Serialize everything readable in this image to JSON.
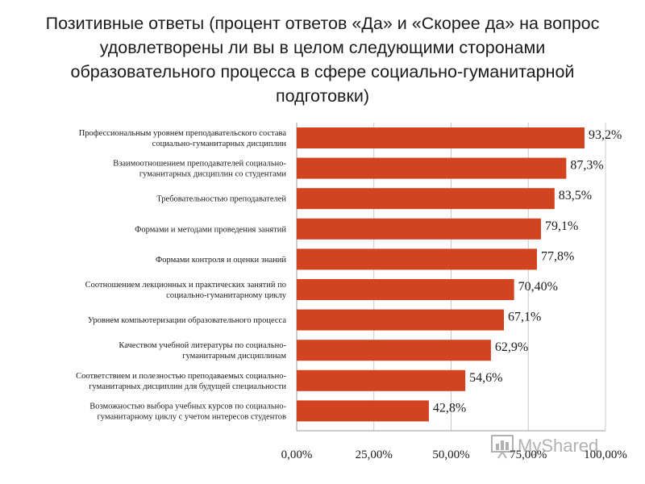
{
  "chart_data": {
    "type": "bar",
    "orientation": "horizontal",
    "title": "Позитивные ответы (процент ответов «Да» и «Скорее да» на вопрос удовлетворены ли вы в целом следующими сторонами образовательного процесса в сфере социально-гуманитарной подготовки)",
    "categories": [
      [
        "Профессиональным уровнем преподавательского состава",
        "социально-гуманитарных дисциплин"
      ],
      [
        "Взаимоотношением преподавателей социально-",
        "гуманитарных дисциплин со студентами"
      ],
      [
        "Требовательностью преподавателей"
      ],
      [
        "Формами и методами проведения занятий"
      ],
      [
        "Формами контроля и оценки знаний"
      ],
      [
        "Соотношением лекционных и практических занятий по",
        "социально-гуманитарному циклу"
      ],
      [
        "Уровнем компьютеризации образовательного процесса"
      ],
      [
        "Качеством учебной литературы по социально-",
        "гуманитарным дисциплинам"
      ],
      [
        "Соответствием и полезностью преподаваемых социально-",
        "гуманитарных дисциплин для будущей специальности"
      ],
      [
        "Возможностью выбора учебных курсов по социально-",
        "гуманитарному циклу с учетом интересов студентов"
      ]
    ],
    "values": [
      93.2,
      87.3,
      83.5,
      79.1,
      77.8,
      70.4,
      67.1,
      62.9,
      54.6,
      42.8
    ],
    "value_labels": [
      "93,2%",
      "87,3%",
      "83,5%",
      "79,1%",
      "77,8%",
      "70,40%",
      "67,1%",
      "62,9%",
      "54,6%",
      "42,8%"
    ],
    "xlim": [
      0,
      100
    ],
    "xticks": [
      0,
      25,
      50,
      75,
      100
    ],
    "xtick_labels": [
      "0,00%",
      "25,00%",
      "50,00%",
      "75,00%",
      "100,00%"
    ],
    "grid": true,
    "bar_color": "#d2431f"
  },
  "watermark": {
    "text": "MyShared"
  }
}
